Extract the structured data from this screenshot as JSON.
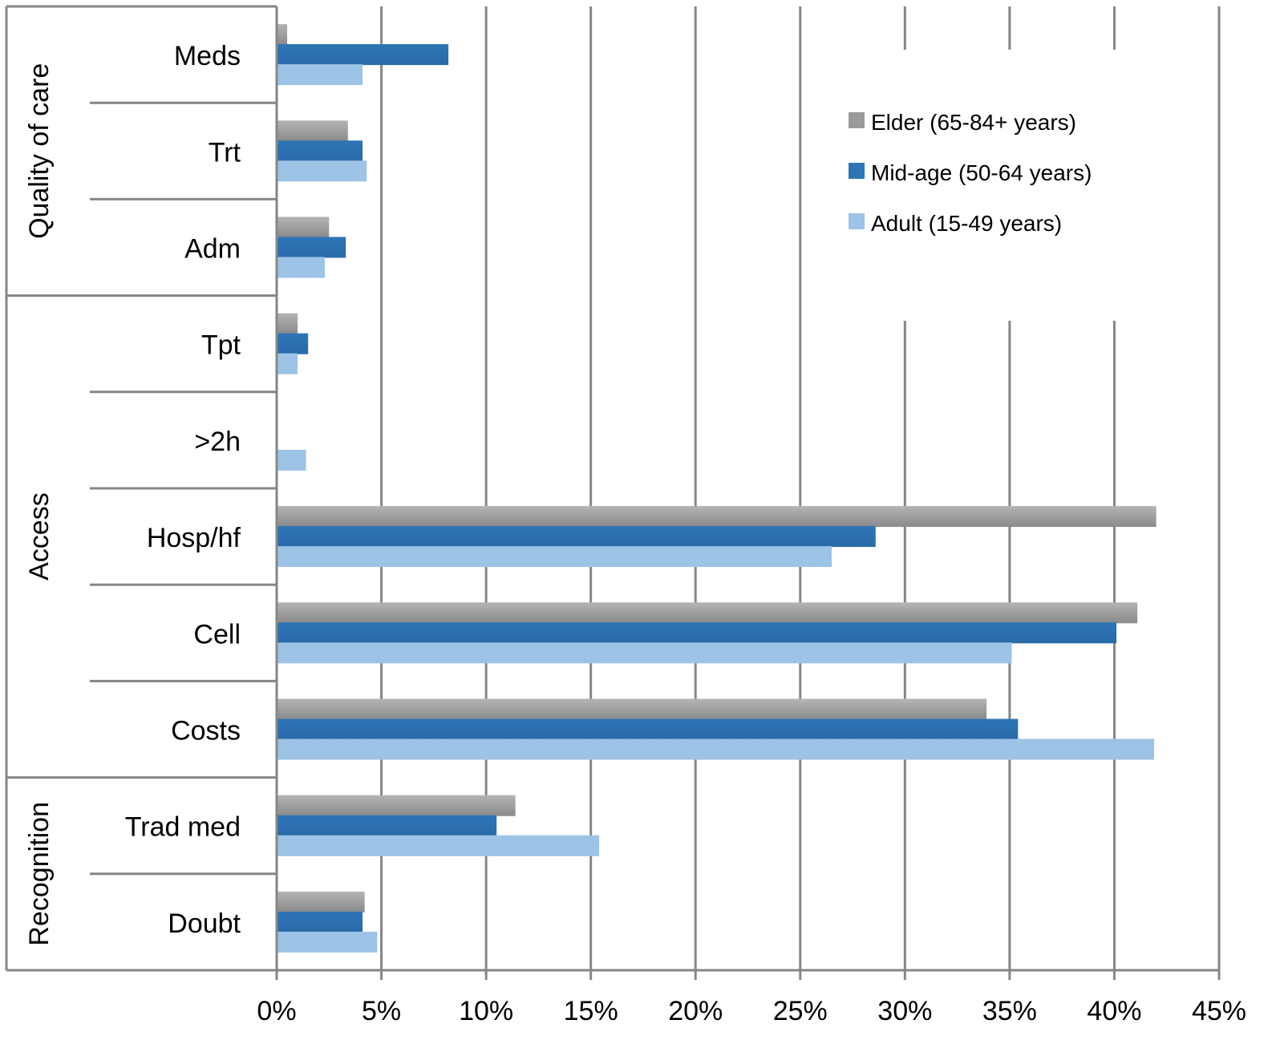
{
  "chart_data": {
    "type": "bar",
    "orientation": "horizontal",
    "title": "",
    "xlabel": "",
    "ylabel": "",
    "xlim": [
      0,
      45
    ],
    "x_ticks": [
      "0%",
      "5%",
      "10%",
      "15%",
      "20%",
      "25%",
      "30%",
      "35%",
      "40%",
      "45%"
    ],
    "grid": "vertical",
    "legend_position": "top-right",
    "groups": [
      {
        "label": "Quality of care",
        "categories": [
          "Meds",
          "Trt",
          "Adm"
        ]
      },
      {
        "label": "Access",
        "categories": [
          "Tpt",
          ">2h",
          "Hosp/hf",
          "Cell",
          "Costs"
        ]
      },
      {
        "label": "Recognition",
        "categories": [
          "Trad med",
          "Doubt"
        ]
      }
    ],
    "categories": [
      "Meds",
      "Trt",
      "Adm",
      "Tpt",
      ">2h",
      "Hosp/hf",
      "Cell",
      "Costs",
      "Trad med",
      "Doubt"
    ],
    "series": [
      {
        "name": "Elder (65-84+ years)",
        "color": "#9a9a9a",
        "values": [
          0.5,
          3.4,
          2.5,
          1.0,
          0,
          42.0,
          41.1,
          33.9,
          11.4,
          4.2
        ]
      },
      {
        "name": "Mid-age (50-64 years)",
        "color": "#2e75b6",
        "values": [
          8.2,
          4.1,
          3.3,
          1.5,
          0,
          28.6,
          40.1,
          35.4,
          10.5,
          4.1
        ]
      },
      {
        "name": "Adult (15-49 years)",
        "color": "#9dc3e6",
        "values": [
          4.1,
          4.3,
          2.3,
          1.0,
          1.4,
          26.5,
          35.1,
          41.9,
          15.4,
          4.8
        ]
      }
    ]
  }
}
